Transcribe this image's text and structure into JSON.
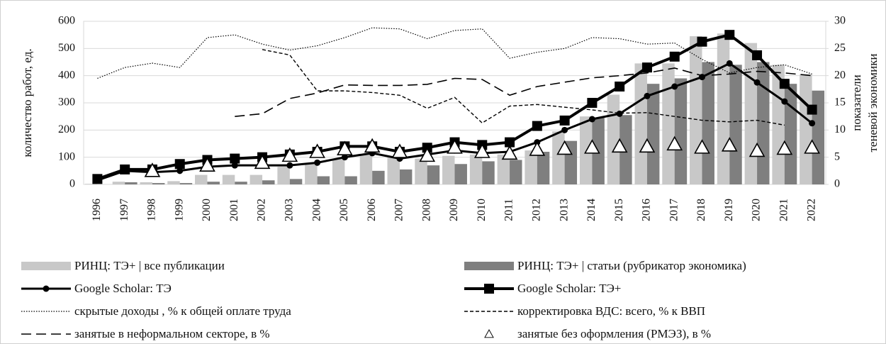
{
  "chart_data": {
    "type": "combo",
    "ylabel": "количество работ, ед.",
    "y2label": [
      "показатели",
      "теневой экономики"
    ],
    "categories": [
      "1996",
      "1997",
      "1998",
      "1999",
      "2000",
      "2001",
      "2002",
      "2003",
      "2004",
      "2005",
      "2006",
      "2007",
      "2008",
      "2009",
      "2010",
      "2011",
      "2012",
      "2013",
      "2014",
      "2015",
      "2016",
      "2017",
      "2018",
      "2019",
      "2020",
      "2021",
      "2022"
    ],
    "ylim": [
      0,
      600
    ],
    "yticks": [
      0,
      100,
      200,
      300,
      400,
      500,
      600
    ],
    "y2lim": [
      0,
      30
    ],
    "y2ticks": [
      0,
      5,
      10,
      15,
      20,
      25,
      30
    ],
    "grid": true,
    "series": [
      {
        "name": "РИНЦ: ТЭ+ |  все публикации",
        "kind": "bar",
        "color": "#c8c8c8",
        "values": [
          2,
          10,
          8,
          12,
          35,
          35,
          35,
          65,
          75,
          95,
          110,
          100,
          95,
          105,
          110,
          110,
          125,
          195,
          250,
          330,
          445,
          445,
          545,
          555,
          520,
          440,
          405
        ]
      },
      {
        "name": "РИНЦ: ТЭ+ |  статьи (рубрикатор  экономика)",
        "kind": "bar",
        "color": "#7f7f7f",
        "values": [
          0,
          8,
          5,
          5,
          10,
          10,
          15,
          20,
          30,
          30,
          50,
          55,
          70,
          75,
          85,
          90,
          120,
          160,
          245,
          255,
          370,
          390,
          450,
          440,
          450,
          370,
          345
        ]
      },
      {
        "name": "Google Scholar: ТЭ",
        "kind": "line",
        "color": "#000000",
        "dash": "solid",
        "marker": "circle",
        "width": 3,
        "values": [
          15,
          50,
          45,
          50,
          65,
          70,
          70,
          70,
          80,
          100,
          115,
          95,
          110,
          125,
          115,
          120,
          155,
          200,
          240,
          260,
          325,
          360,
          395,
          445,
          375,
          305,
          225
        ]
      },
      {
        "name": "Google Scholar: ТЭ+",
        "kind": "line",
        "color": "#000000",
        "dash": "solid",
        "marker": "square",
        "width": 4,
        "values": [
          20,
          55,
          55,
          75,
          90,
          95,
          100,
          110,
          120,
          140,
          140,
          120,
          135,
          155,
          145,
          155,
          215,
          235,
          300,
          360,
          430,
          470,
          525,
          550,
          475,
          370,
          275
        ]
      },
      {
        "name": "скрытые доходы , % к общей оплате труда",
        "kind": "line",
        "axis": "y2",
        "color": "#000000",
        "dash": "dotted",
        "width": 1.2,
        "values": [
          19.5,
          21.5,
          22.3,
          21.5,
          27,
          27.5,
          25.8,
          24.7,
          25.5,
          27,
          28.8,
          28.6,
          26.8,
          28.3,
          28.6,
          23.2,
          24.3,
          25,
          27,
          26.8,
          25.8,
          26,
          23,
          20.5,
          21.5,
          22,
          20.3
        ]
      },
      {
        "name": "корректировка ВДС: всего, % к ВВП",
        "kind": "line",
        "axis": "y2",
        "color": "#000000",
        "dash": "dashed",
        "width": 1.4,
        "values": [
          null,
          null,
          null,
          null,
          null,
          null,
          24.8,
          23.8,
          17.2,
          17.2,
          16.9,
          16.4,
          14,
          16,
          11.3,
          14.4,
          14.7,
          14.2,
          13.7,
          13.1,
          13.2,
          12.5,
          11.8,
          11.5,
          11.8,
          10.9,
          null
        ]
      },
      {
        "name": "занятые в неформальном секторе, в %",
        "kind": "line",
        "axis": "y2",
        "color": "#000000",
        "dash": "longdash",
        "width": 1.6,
        "values": [
          null,
          null,
          null,
          null,
          null,
          12.5,
          13,
          15.8,
          16.8,
          18.3,
          18.2,
          18.2,
          18.4,
          19.5,
          19.3,
          16.4,
          18,
          18.8,
          19.6,
          20,
          20.5,
          21.4,
          20,
          20.3,
          20.8,
          20.5,
          20
        ]
      },
      {
        "name": "занятые без оформления (РМЭЗ), в %",
        "kind": "marker",
        "axis": "y2",
        "color": "#000000",
        "marker": "triangle",
        "values": [
          null,
          null,
          2.5,
          null,
          3.5,
          null,
          4,
          5.3,
          6,
          6.5,
          7,
          6,
          5.3,
          6.8,
          6,
          5.7,
          6.4,
          6.6,
          6.8,
          7,
          7,
          7.4,
          6.8,
          7.2,
          6.2,
          6.6,
          6.8
        ]
      }
    ]
  }
}
